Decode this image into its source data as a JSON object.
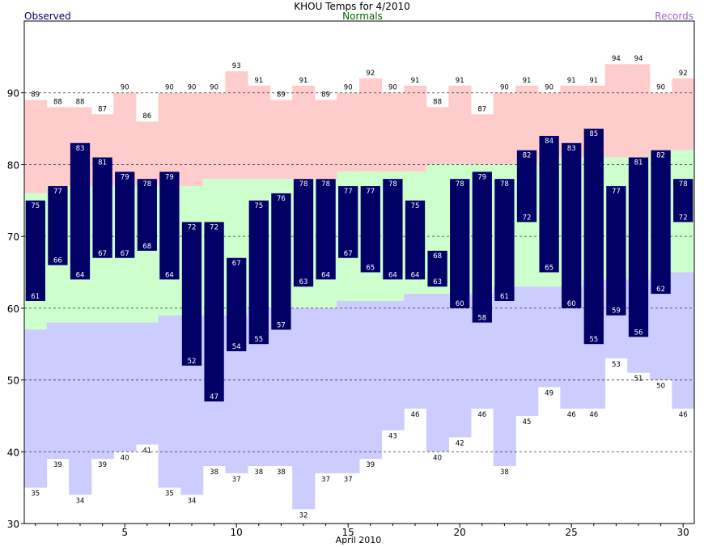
{
  "chart_data": {
    "type": "bar",
    "title": "KHOU Temps for 4/2010",
    "legend": {
      "observed": "Observed",
      "normals": "Normals",
      "records": "Records"
    },
    "xlabel": "April 2010",
    "x": [
      1,
      2,
      3,
      4,
      5,
      6,
      7,
      8,
      9,
      10,
      11,
      12,
      13,
      14,
      15,
      16,
      17,
      18,
      19,
      20,
      21,
      22,
      23,
      24,
      25,
      26,
      27,
      28,
      29,
      30
    ],
    "xlim": [
      0.5,
      30.5
    ],
    "ylim": [
      30,
      100
    ],
    "x_ticks": [
      5,
      10,
      15,
      20,
      25,
      30
    ],
    "y_ticks": [
      30,
      40,
      50,
      60,
      70,
      80,
      90
    ],
    "grid_lines": [
      40,
      50,
      60,
      70,
      80,
      90
    ],
    "colors": {
      "observed": "#000066",
      "normal": "#ccffcc",
      "record_high": "#ffcccc",
      "record_low": "#ccccff",
      "title": "#000000",
      "observed_label": "#000066",
      "normals_label": "#006600",
      "records_label": "#9966cc"
    },
    "series": [
      {
        "name": "Observed",
        "key": "high",
        "values": [
          75,
          77,
          83,
          81,
          79,
          78,
          79,
          72,
          72,
          67,
          75,
          76,
          78,
          78,
          77,
          77,
          78,
          75,
          68,
          78,
          79,
          78,
          82,
          84,
          83,
          85,
          77,
          81,
          82,
          78
        ]
      },
      {
        "name": "Observed",
        "key": "low",
        "values": [
          61,
          66,
          64,
          67,
          67,
          68,
          64,
          52,
          47,
          54,
          55,
          57,
          63,
          64,
          67,
          65,
          64,
          64,
          63,
          60,
          58,
          61,
          72,
          65,
          60,
          55,
          59,
          56,
          62,
          72
        ]
      },
      {
        "name": "Records",
        "key": "record_high",
        "values": [
          89,
          88,
          88,
          87,
          90,
          86,
          90,
          90,
          90,
          93,
          91,
          89,
          91,
          89,
          90,
          92,
          90,
          91,
          88,
          91,
          87,
          90,
          91,
          90,
          91,
          91,
          94,
          94,
          90,
          92
        ]
      },
      {
        "name": "Records",
        "key": "record_low",
        "values": [
          35,
          39,
          34,
          39,
          40,
          41,
          35,
          34,
          38,
          37,
          38,
          38,
          32,
          37,
          37,
          39,
          43,
          46,
          40,
          42,
          46,
          38,
          45,
          49,
          46,
          46,
          53,
          51,
          50,
          46
        ]
      },
      {
        "name": "Normals",
        "key": "normal_high",
        "values": [
          76,
          77,
          77,
          77,
          77,
          77,
          77,
          77,
          78,
          78,
          78,
          78,
          78,
          78,
          79,
          79,
          79,
          79,
          80,
          80,
          80,
          80,
          80,
          81,
          81,
          81,
          81,
          81,
          82,
          82
        ]
      },
      {
        "name": "Normals",
        "key": "normal_low",
        "values": [
          57,
          58,
          58,
          58,
          58,
          58,
          59,
          59,
          59,
          59,
          60,
          60,
          60,
          60,
          61,
          61,
          61,
          62,
          62,
          62,
          62,
          63,
          63,
          63,
          63,
          64,
          64,
          64,
          65,
          65
        ]
      }
    ]
  }
}
